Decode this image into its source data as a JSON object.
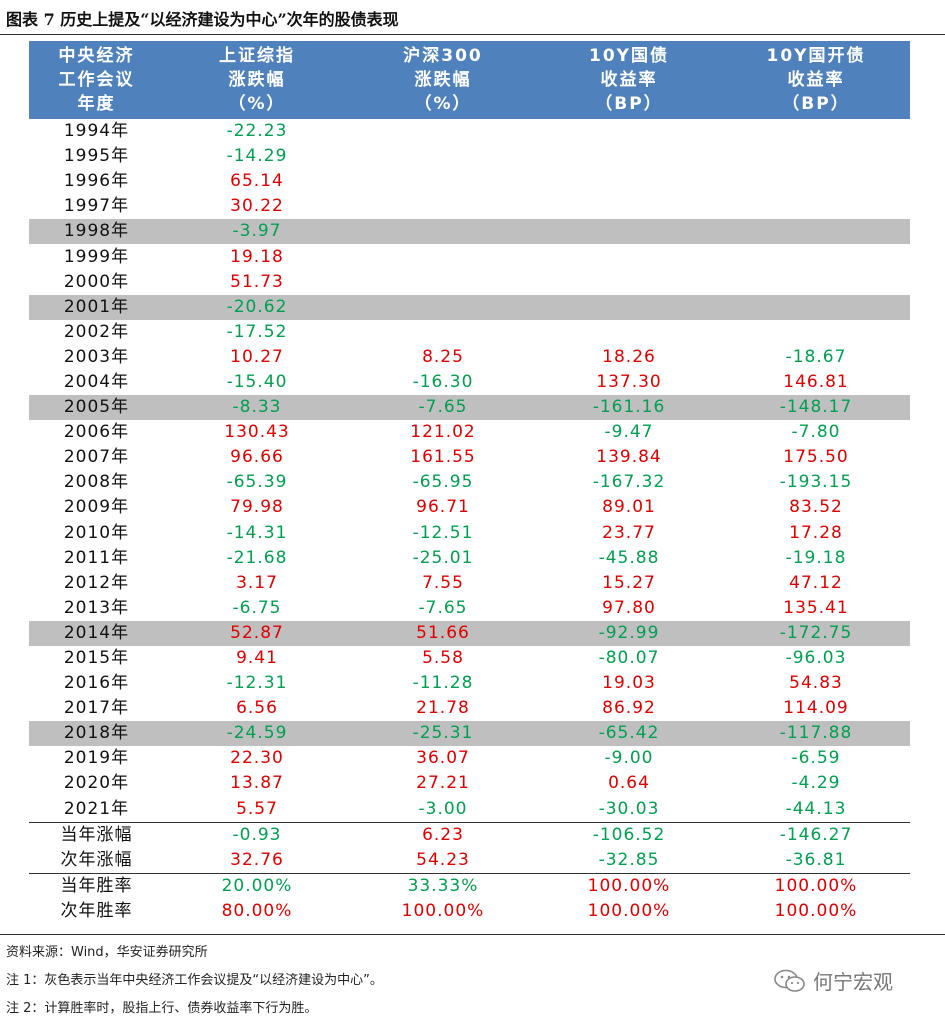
{
  "title": "图表 7 历史上提及“以经济建设为中心”次年的股债表现",
  "headers": [
    [
      "中央经济",
      "工作会议",
      "年度"
    ],
    [
      "上证综指",
      "涨跌幅",
      "（%）"
    ],
    [
      "沪深300",
      "涨跌幅",
      "（%）"
    ],
    [
      "10Y国债",
      "收益率",
      "（BP）"
    ],
    [
      "10Y国开债",
      "收益率",
      "（BP）"
    ]
  ],
  "rows": [
    {
      "year": "1994年",
      "vals": [
        "-22.23",
        "",
        "",
        ""
      ],
      "gray": false
    },
    {
      "year": "1995年",
      "vals": [
        "-14.29",
        "",
        "",
        ""
      ],
      "gray": false
    },
    {
      "year": "1996年",
      "vals": [
        "65.14",
        "",
        "",
        ""
      ],
      "gray": false
    },
    {
      "year": "1997年",
      "vals": [
        "30.22",
        "",
        "",
        ""
      ],
      "gray": false
    },
    {
      "year": "1998年",
      "vals": [
        "-3.97",
        "",
        "",
        ""
      ],
      "gray": true
    },
    {
      "year": "1999年",
      "vals": [
        "19.18",
        "",
        "",
        ""
      ],
      "gray": false
    },
    {
      "year": "2000年",
      "vals": [
        "51.73",
        "",
        "",
        ""
      ],
      "gray": false
    },
    {
      "year": "2001年",
      "vals": [
        "-20.62",
        "",
        "",
        ""
      ],
      "gray": true
    },
    {
      "year": "2002年",
      "vals": [
        "-17.52",
        "",
        "",
        ""
      ],
      "gray": false
    },
    {
      "year": "2003年",
      "vals": [
        "10.27",
        "8.25",
        "18.26",
        "-18.67"
      ],
      "gray": false
    },
    {
      "year": "2004年",
      "vals": [
        "-15.40",
        "-16.30",
        "137.30",
        "146.81"
      ],
      "gray": false
    },
    {
      "year": "2005年",
      "vals": [
        "-8.33",
        "-7.65",
        "-161.16",
        "-148.17"
      ],
      "gray": true
    },
    {
      "year": "2006年",
      "vals": [
        "130.43",
        "121.02",
        "-9.47",
        "-7.80"
      ],
      "gray": false
    },
    {
      "year": "2007年",
      "vals": [
        "96.66",
        "161.55",
        "139.84",
        "175.50"
      ],
      "gray": false
    },
    {
      "year": "2008年",
      "vals": [
        "-65.39",
        "-65.95",
        "-167.32",
        "-193.15"
      ],
      "gray": false
    },
    {
      "year": "2009年",
      "vals": [
        "79.98",
        "96.71",
        "89.01",
        "83.52"
      ],
      "gray": false
    },
    {
      "year": "2010年",
      "vals": [
        "-14.31",
        "-12.51",
        "23.77",
        "17.28"
      ],
      "gray": false
    },
    {
      "year": "2011年",
      "vals": [
        "-21.68",
        "-25.01",
        "-45.88",
        "-19.18"
      ],
      "gray": false
    },
    {
      "year": "2012年",
      "vals": [
        "3.17",
        "7.55",
        "15.27",
        "47.12"
      ],
      "gray": false
    },
    {
      "year": "2013年",
      "vals": [
        "-6.75",
        "-7.65",
        "97.80",
        "135.41"
      ],
      "gray": false
    },
    {
      "year": "2014年",
      "vals": [
        "52.87",
        "51.66",
        "-92.99",
        "-172.75"
      ],
      "gray": true
    },
    {
      "year": "2015年",
      "vals": [
        "9.41",
        "5.58",
        "-80.07",
        "-96.03"
      ],
      "gray": false
    },
    {
      "year": "2016年",
      "vals": [
        "-12.31",
        "-11.28",
        "19.03",
        "54.83"
      ],
      "gray": false
    },
    {
      "year": "2017年",
      "vals": [
        "6.56",
        "21.78",
        "86.92",
        "114.09"
      ],
      "gray": false
    },
    {
      "year": "2018年",
      "vals": [
        "-24.59",
        "-25.31",
        "-65.42",
        "-117.88"
      ],
      "gray": true
    },
    {
      "year": "2019年",
      "vals": [
        "22.30",
        "36.07",
        "-9.00",
        "-6.59"
      ],
      "gray": false
    },
    {
      "year": "2020年",
      "vals": [
        "13.87",
        "27.21",
        "0.64",
        "-4.29"
      ],
      "gray": false
    },
    {
      "year": "2021年",
      "vals": [
        "5.57",
        "-3.00",
        "-30.03",
        "-44.13"
      ],
      "gray": false
    }
  ],
  "summary": [
    {
      "label": "当年涨幅",
      "vals": [
        "-0.93",
        "6.23",
        "-106.52",
        "-146.27"
      ],
      "sep": true
    },
    {
      "label": "次年涨幅",
      "vals": [
        "32.76",
        "54.23",
        "-32.85",
        "-36.81"
      ],
      "sep": false
    },
    {
      "label": "当年胜率",
      "vals": [
        "20.00%",
        "33.33%",
        "100.00%",
        "100.00%"
      ],
      "sep": true
    },
    {
      "label": "次年胜率",
      "vals": [
        "80.00%",
        "100.00%",
        "100.00%",
        "100.00%"
      ],
      "sep": false
    }
  ],
  "summary_colors": [
    [
      "neg",
      "pos",
      "neg",
      "neg"
    ],
    [
      "pos",
      "pos",
      "neg",
      "neg"
    ],
    [
      "neg",
      "neg",
      "pos",
      "pos"
    ],
    [
      "pos",
      "pos",
      "pos",
      "pos"
    ]
  ],
  "colors": {
    "header_bg": "#4f81bd",
    "positive": "#e00000",
    "negative": "#00a050",
    "highlight_row": "#bfbfbf"
  },
  "source": "资料来源：Wind，华安证券研究所",
  "note1": "注 1：灰色表示当年中央经济工作会议提及“以经济建设为中心”。",
  "note2": "注 2：计算胜率时，股指上行、债券收益率下行为胜。",
  "watermark": "何宁宏观",
  "watermark_icon": "wechat-icon"
}
